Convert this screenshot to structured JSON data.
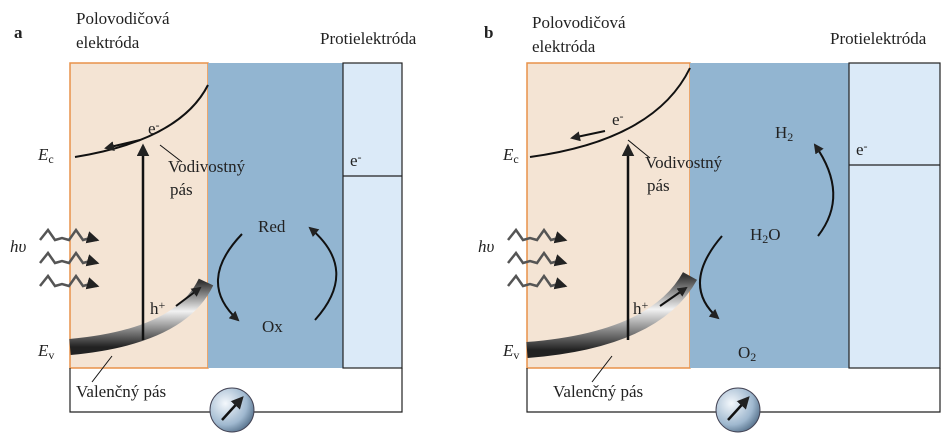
{
  "panels": [
    {
      "label": "a",
      "semiconductor": [
        "Polovodičová",
        "elektróda"
      ],
      "counter_electrode": "Protielektróda",
      "conduction_band_level": {
        "base": "E",
        "sub": "c"
      },
      "valence_band_level": {
        "base": "E",
        "sub": "v"
      },
      "electron": {
        "base": "e",
        "sup": "-"
      },
      "hole": {
        "base": "h",
        "sup": "+"
      },
      "light": "hυ",
      "conduction_band": [
        "Vodivostný",
        "pás"
      ],
      "valence_band": "Valenčný pás",
      "counter_electron": {
        "base": "e",
        "sup": "-"
      },
      "species_top": {
        "base": "Red"
      },
      "species_bottom": {
        "base": "Ox"
      }
    },
    {
      "label": "b",
      "semiconductor": [
        "Polovodičová",
        "elektróda"
      ],
      "counter_electrode": "Protielektróda",
      "conduction_band_level": {
        "base": "E",
        "sub": "c"
      },
      "valence_band_level": {
        "base": "E",
        "sub": "v"
      },
      "electron": {
        "base": "e",
        "sup": "-"
      },
      "hole": {
        "base": "h",
        "sup": "+"
      },
      "light": "hυ",
      "conduction_band": [
        "Vodivostný",
        "pás"
      ],
      "valence_band": "Valenčný pás",
      "counter_electron": {
        "base": "e",
        "sup": "-"
      },
      "species_middle": {
        "base": "H",
        "sub": "2",
        "tail": "O"
      },
      "species_bottom": {
        "base": "O",
        "sub": "2"
      },
      "species_counter": {
        "base": "H",
        "sub": "2"
      }
    }
  ]
}
